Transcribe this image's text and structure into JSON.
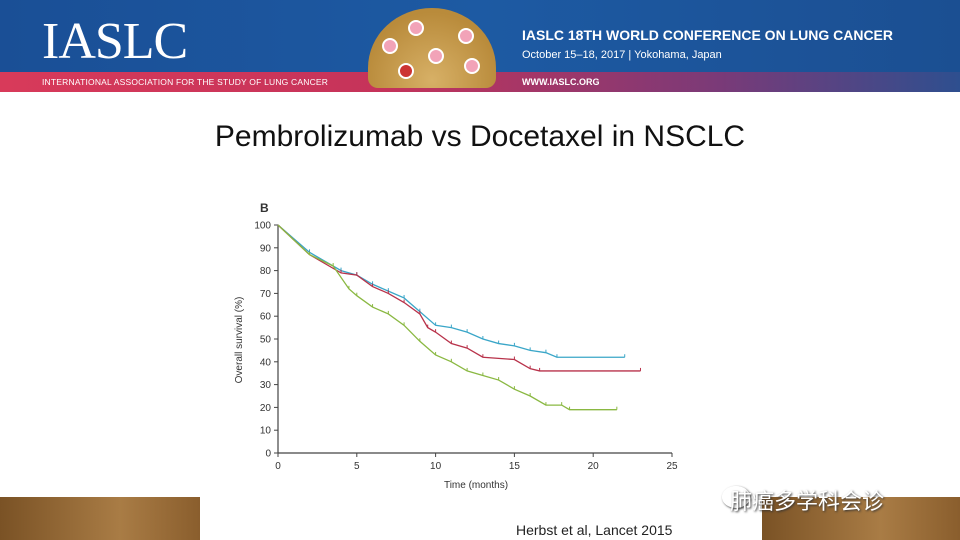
{
  "header": {
    "logo_text": "IASLC",
    "association": "INTERNATIONAL ASSOCIATION FOR THE STUDY OF LUNG CANCER",
    "conference_title": "IASLC 18TH WORLD CONFERENCE ON LUNG CANCER",
    "conference_date": "October 15–18, 2017 | Yokohama, Japan",
    "url": "WWW.IASLC.ORG"
  },
  "slide": {
    "title": "Pembrolizumab vs Docetaxel in NSCLC",
    "citation": "Herbst et al, Lancet 2015",
    "watermark": "肺癌多学科会诊"
  },
  "colors": {
    "blue": "#3aa6c8",
    "red": "#b8324a",
    "green": "#8ab842"
  },
  "chart_data": {
    "type": "line",
    "panel_label": "B",
    "xlabel": "Time (months)",
    "ylabel": "Overall survival (%)",
    "xlim": [
      0,
      25
    ],
    "ylim": [
      0,
      100
    ],
    "xticks": [
      0,
      5,
      10,
      15,
      20,
      25
    ],
    "yticks": [
      0,
      10,
      20,
      30,
      40,
      50,
      60,
      70,
      80,
      90,
      100
    ],
    "series": [
      {
        "name": "blue",
        "color": "#3aa6c8",
        "x": [
          0,
          2,
          4,
          5,
          6,
          7,
          8,
          9,
          10,
          11,
          12,
          13,
          14,
          15,
          16,
          17,
          17.7,
          22
        ],
        "y": [
          100,
          88,
          80,
          78,
          74,
          71,
          68,
          62,
          56,
          55,
          53,
          50,
          48,
          47,
          45,
          44,
          42,
          42
        ]
      },
      {
        "name": "red",
        "color": "#b8324a",
        "x": [
          0,
          2,
          4,
          5,
          6,
          7,
          8,
          9,
          9.5,
          10,
          11,
          12,
          13,
          15,
          16,
          16.6,
          23
        ],
        "y": [
          100,
          87,
          79,
          78,
          73,
          70,
          66,
          61,
          55,
          53,
          48,
          46,
          42,
          41,
          37,
          36,
          36
        ]
      },
      {
        "name": "green",
        "color": "#8ab842",
        "x": [
          0,
          2,
          3.5,
          4.5,
          5,
          6,
          7,
          8,
          9,
          10,
          11,
          12,
          13,
          14,
          15,
          16,
          17,
          18,
          18.5,
          21.5
        ],
        "y": [
          100,
          87,
          82,
          72,
          69,
          64,
          61,
          56,
          49,
          43,
          40,
          36,
          34,
          32,
          28,
          25,
          21,
          21,
          19,
          19
        ]
      }
    ]
  }
}
